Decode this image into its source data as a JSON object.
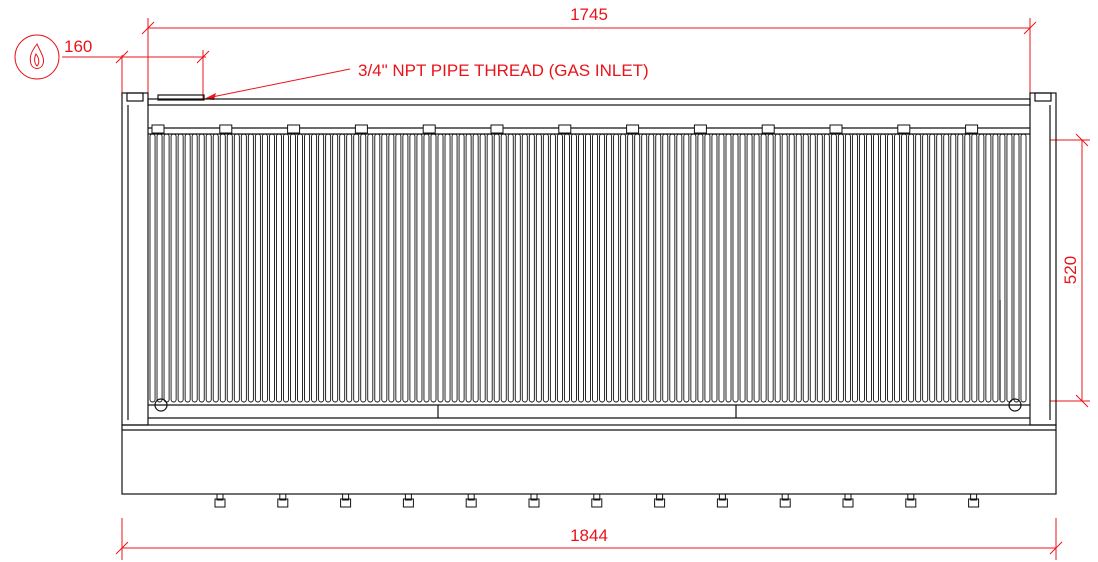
{
  "dimensions": {
    "top_width": "1745",
    "inlet_offset": "160",
    "grill_depth": "520",
    "overall_width": "1844"
  },
  "callout": {
    "gas_inlet": "3/4\" NPT PIPE THREAD (GAS INLET)"
  },
  "icons": {
    "gas_symbol": "flame-icon"
  },
  "colors": {
    "dimension": "#e8141b",
    "outline": "#111111"
  },
  "grill": {
    "bar_count": 125,
    "knob_count": 13,
    "bracket_count": 13
  }
}
